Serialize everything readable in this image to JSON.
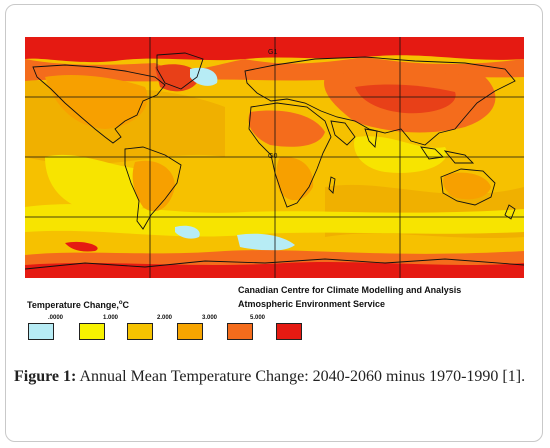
{
  "credit": {
    "line1": "Canadian Centre for Climate Modelling and Analysis",
    "line2": "Atmospheric Environment Service"
  },
  "legend": {
    "title": "Temperature Change,",
    "unit": "o",
    "unit_suffix": "C",
    "ticks": [
      ".0000",
      "1.000",
      "2.000",
      "3.000",
      "5.000"
    ],
    "colors": [
      "#b7ecf5",
      "#f7f200",
      "#f6c300",
      "#f7a500",
      "#f46c1c",
      "#e51a12"
    ]
  },
  "map_labels": {
    "equator_top": "G1",
    "equator": "G0"
  },
  "caption": {
    "label": "Figure 1:",
    "text": " Annual Mean Temperature Change: 2040-2060 minus 1970-1990 [1]."
  }
}
